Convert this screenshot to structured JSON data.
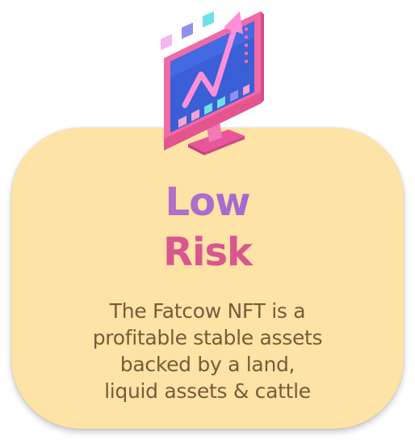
{
  "illustration": {
    "icon": "monitor-growth-chart-icon",
    "colors": {
      "frame": "#f06aa6",
      "screen": "#3a5fd6",
      "arrow": "#ff8fd8",
      "accent_cyan": "#6fe0e8",
      "accent_purple": "#8f8ff0"
    }
  },
  "card": {
    "background": "#fde3a6",
    "title_line1": "Low",
    "title_line2": "Risk",
    "description_lines": [
      "The Fatcow NFT is a",
      "profitable stable assets",
      "backed by a land,",
      "liquid assets & cattle"
    ]
  }
}
